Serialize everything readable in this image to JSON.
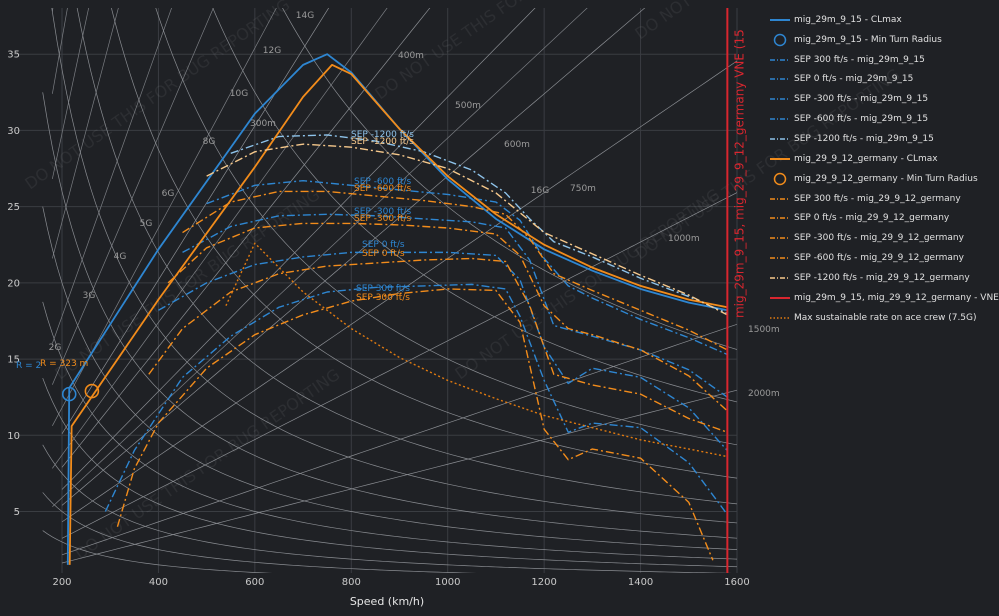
{
  "chart_data": {
    "type": "line",
    "xlabel": "Speed (km/h)",
    "ylabel": "",
    "xlim": [
      150,
      1600
    ],
    "ylim": [
      1.5,
      37
    ],
    "x_ticks": [
      200,
      400,
      600,
      800,
      1000,
      1200,
      1400,
      1600
    ],
    "y_ticks": [
      5,
      10,
      15,
      20,
      25,
      30,
      35
    ],
    "grid": true,
    "legend_position": "right",
    "watermark": "DO NOT USE THIS FOR BUG REPORTING",
    "g_lines": [
      "2G",
      "3G",
      "4G",
      "5G",
      "6G",
      "8G",
      "10G",
      "12G",
      "14G",
      "16G"
    ],
    "radius_lines": [
      "300m",
      "400m",
      "500m",
      "600m",
      "750m",
      "1000m",
      "1500m",
      "2000m"
    ],
    "annotations": {
      "radius_blue": "R = 2",
      "radius_orange": "R = 323 m",
      "vne_label": "mig_29m_9_15, mig_29_9_12_germany VNE (15"
    },
    "colors": {
      "blue": "#2e86d1",
      "blue_light": "#8ec3ea",
      "orange": "#f28c1b",
      "orange_light": "#f7c98c",
      "red": "#d9262f",
      "dotted": "#e07a10"
    },
    "vne_speed": 1580,
    "series": [
      {
        "name": "mig_29m_9_15 - CLmax",
        "style": "solid",
        "color": "blue",
        "x": [
          212,
          215,
          400,
          600,
          700,
          750,
          800,
          900,
          1000,
          1100,
          1200,
          1300,
          1400,
          1500,
          1580
        ],
        "y": [
          1.5,
          13.1,
          22.2,
          31.1,
          34.3,
          35.0,
          33.8,
          30.1,
          26.8,
          24.2,
          22.2,
          20.8,
          19.6,
          18.7,
          18.2
        ]
      },
      {
        "name": "mig_29m_9_15 - Min Turn Radius",
        "style": "marker",
        "color": "blue",
        "x": [
          215
        ],
        "y": [
          12.7
        ]
      },
      {
        "name": "SEP 300 ft/s - mig_29m_9_15",
        "style": "dashdot",
        "color": "blue",
        "x": [
          290,
          350,
          450,
          550,
          650,
          750,
          850,
          950,
          1050,
          1120,
          1150,
          1200,
          1250,
          1300,
          1400,
          1500,
          1580
        ],
        "y": [
          5,
          9,
          13.8,
          16.5,
          18.4,
          19.4,
          19.7,
          19.8,
          19.9,
          19.6,
          17.8,
          13.6,
          10.2,
          10.8,
          10.5,
          8.2,
          4.8
        ]
      },
      {
        "name": "SEP 0 ft/s - mig_29m_9_15",
        "style": "dashdot",
        "color": "blue",
        "x": [
          400,
          500,
          600,
          700,
          800,
          900,
          1000,
          1100,
          1150,
          1200,
          1250,
          1300,
          1400,
          1500,
          1580
        ],
        "y": [
          18.2,
          20.0,
          21.2,
          21.7,
          22.0,
          22.0,
          22.0,
          21.8,
          20.2,
          15.8,
          13.4,
          14.4,
          13.8,
          11.8,
          9.0
        ]
      },
      {
        "name": "SEP -300 ft/s - mig_29m_9_15",
        "style": "dashdot",
        "color": "blue",
        "x": [
          450,
          550,
          650,
          750,
          850,
          950,
          1050,
          1120,
          1170,
          1220,
          1300,
          1400,
          1500,
          1580
        ],
        "y": [
          22.0,
          23.7,
          24.4,
          24.5,
          24.4,
          24.2,
          24.0,
          23.6,
          21.5,
          17.2,
          16.5,
          15.6,
          14.3,
          12.5
        ]
      },
      {
        "name": "SEP -600 ft/s - mig_29m_9_15",
        "style": "dashdot",
        "color": "blue",
        "x": [
          500,
          600,
          700,
          800,
          900,
          1000,
          1100,
          1150,
          1200,
          1250,
          1300,
          1400,
          1500,
          1580
        ],
        "y": [
          25.2,
          26.4,
          26.7,
          26.4,
          26.1,
          25.8,
          25.3,
          24.1,
          21.6,
          19.8,
          19.0,
          17.6,
          16.4,
          15.3
        ]
      },
      {
        "name": "SEP -1200 ft/s - mig_29m_9_15",
        "style": "dashdot",
        "color": "blue_light",
        "x": [
          550,
          650,
          750,
          850,
          950,
          1050,
          1120,
          1170,
          1220,
          1300,
          1400,
          1500,
          1580
        ],
        "y": [
          28.5,
          29.6,
          29.7,
          29.3,
          28.6,
          27.4,
          25.9,
          24.2,
          22.7,
          21.7,
          20.3,
          19.1,
          18.0
        ]
      },
      {
        "name": "mig_29_9_12_germany - CLmax",
        "style": "solid",
        "color": "orange",
        "x": [
          216,
          220,
          400,
          600,
          700,
          760,
          800,
          900,
          1000,
          1100,
          1200,
          1300,
          1400,
          1500,
          1580
        ],
        "y": [
          1.5,
          10.6,
          18.9,
          27.6,
          32.2,
          34.3,
          33.7,
          30.1,
          27.0,
          24.5,
          22.5,
          21.0,
          19.8,
          18.9,
          18.4
        ]
      },
      {
        "name": "mig_29_9_12_germany - Min Turn Radius",
        "style": "marker",
        "color": "orange",
        "x": [
          262
        ],
        "y": [
          12.9
        ]
      },
      {
        "name": "SEP 300 ft/s - mig_29_9_12_germany",
        "style": "dashdot",
        "color": "orange",
        "x": [
          315,
          350,
          400,
          500,
          600,
          700,
          800,
          900,
          1000,
          1100,
          1150,
          1200,
          1250,
          1300,
          1400,
          1500,
          1550
        ],
        "y": [
          4,
          7.8,
          10.8,
          14.4,
          16.6,
          17.9,
          18.8,
          19.3,
          19.6,
          19.5,
          17.4,
          10.4,
          8.4,
          9.1,
          8.5,
          5.6,
          1.8
        ]
      },
      {
        "name": "SEP 0 ft/s - mig_29_9_12_germany",
        "style": "dashdot",
        "color": "orange",
        "x": [
          380,
          450,
          550,
          650,
          750,
          850,
          950,
          1050,
          1120,
          1170,
          1220,
          1300,
          1400,
          1500,
          1580
        ],
        "y": [
          14.0,
          17.0,
          19.4,
          20.6,
          21.1,
          21.3,
          21.5,
          21.6,
          21.4,
          18.5,
          14.0,
          13.3,
          12.7,
          11.1,
          10.2
        ]
      },
      {
        "name": "SEP -300 ft/s - mig_29_9_12_germany",
        "style": "dashdot",
        "color": "orange",
        "x": [
          420,
          500,
          600,
          700,
          800,
          900,
          1000,
          1100,
          1150,
          1200,
          1250,
          1300,
          1400,
          1500,
          1580
        ],
        "y": [
          20.0,
          22.3,
          23.6,
          23.9,
          23.9,
          23.8,
          23.6,
          23.2,
          21.8,
          18.5,
          17.0,
          16.6,
          15.6,
          13.9,
          11.6
        ]
      },
      {
        "name": "SEP -600 ft/s - mig_29_9_12_germany",
        "style": "dashdot",
        "color": "orange",
        "x": [
          450,
          550,
          650,
          750,
          850,
          950,
          1050,
          1120,
          1170,
          1220,
          1300,
          1400,
          1500,
          1580
        ],
        "y": [
          23.3,
          25.3,
          26.0,
          26.0,
          25.7,
          25.4,
          25.0,
          24.5,
          22.9,
          20.6,
          19.5,
          18.2,
          16.9,
          15.6
        ]
      },
      {
        "name": "SEP -1200 ft/s - mig_29_9_12_germany",
        "style": "dashdot",
        "color": "orange_light",
        "x": [
          500,
          600,
          700,
          800,
          900,
          1000,
          1100,
          1150,
          1200,
          1250,
          1300,
          1400,
          1500,
          1580
        ],
        "y": [
          27.0,
          28.6,
          29.1,
          28.9,
          28.4,
          27.5,
          25.9,
          24.6,
          23.3,
          22.6,
          21.9,
          20.5,
          19.2,
          17.9
        ]
      },
      {
        "name": "mig_29m_9_15, mig_29_9_12_germany - VNE",
        "style": "vertical",
        "color": "red",
        "x": [
          1580,
          1580
        ],
        "y": [
          1.5,
          37
        ]
      },
      {
        "name": "Max sustainable rate on ace crew (7.5G)",
        "style": "dotted",
        "color": "dotted",
        "x": [
          540,
          600,
          700,
          800,
          900,
          1000,
          1100,
          1200,
          1300,
          1400,
          1500,
          1580
        ],
        "y": [
          18.5,
          22.6,
          19.4,
          17.0,
          15.1,
          13.6,
          12.4,
          11.3,
          10.5,
          9.7,
          9.1,
          8.6
        ]
      }
    ]
  }
}
